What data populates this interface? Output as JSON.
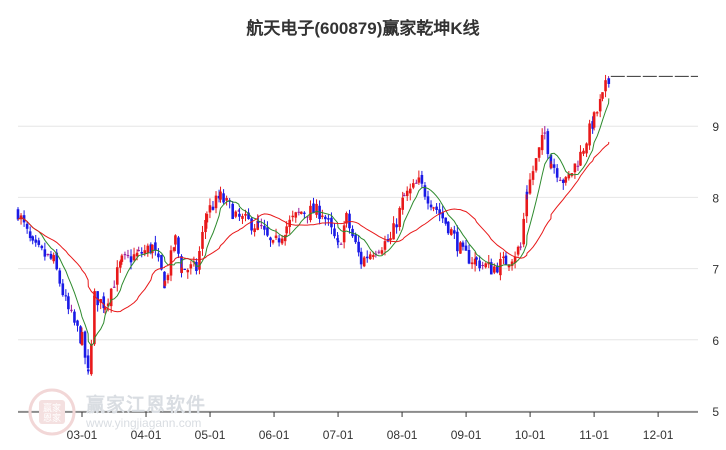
{
  "title": "航天电子(600879)赢家乾坤K线",
  "watermark": {
    "brand": "赢家江恩软件",
    "url": "www.yingjiagann.com",
    "seal_text": "赢家 恩家"
  },
  "colors": {
    "up": "#e8191a",
    "down": "#1a1ae6",
    "doji": "#9b1a9b",
    "ma_short": "#2e8b2e",
    "ma_long": "#e8191a",
    "grid": "#e6e6e6",
    "axis": "#333333"
  },
  "chart_data": {
    "type": "candlestick",
    "title": "航天电子(600879)赢家乾坤K线",
    "x_ticks": [
      "03-01",
      "04-01",
      "05-01",
      "06-01",
      "07-01",
      "08-01",
      "09-01",
      "10-01",
      "11-01",
      "12-01"
    ],
    "y_ticks": [
      "5",
      "6",
      "7",
      "8",
      "9"
    ],
    "ylim": [
      5,
      10
    ],
    "grid": true,
    "last_close_line": 9.7,
    "series": [
      {
        "kind": "candles",
        "keypoints": [
          {
            "date": "02-01",
            "price": 7.8
          },
          {
            "date": "02-08",
            "price": 7.3
          },
          {
            "date": "02-18",
            "price": 7.1
          },
          {
            "date": "02-25",
            "price": 6.4
          },
          {
            "date": "03-01",
            "price": 6.0
          },
          {
            "date": "03-04",
            "price": 5.5
          },
          {
            "date": "03-07",
            "price": 6.6
          },
          {
            "date": "03-12",
            "price": 6.5
          },
          {
            "date": "03-20",
            "price": 7.1
          },
          {
            "date": "03-28",
            "price": 7.2
          },
          {
            "date": "04-04",
            "price": 7.3
          },
          {
            "date": "04-10",
            "price": 6.8
          },
          {
            "date": "04-15",
            "price": 7.4
          },
          {
            "date": "04-18",
            "price": 7.0
          },
          {
            "date": "04-25",
            "price": 7.0
          },
          {
            "date": "04-30",
            "price": 7.8
          },
          {
            "date": "05-06",
            "price": 8.0
          },
          {
            "date": "05-15",
            "price": 7.7
          },
          {
            "date": "05-24",
            "price": 7.6
          },
          {
            "date": "05-31",
            "price": 7.3
          },
          {
            "date": "06-07",
            "price": 7.6
          },
          {
            "date": "06-14",
            "price": 7.8
          },
          {
            "date": "06-24",
            "price": 7.8
          },
          {
            "date": "07-01",
            "price": 7.3
          },
          {
            "date": "07-05",
            "price": 7.7
          },
          {
            "date": "07-12",
            "price": 7.1
          },
          {
            "date": "07-19",
            "price": 7.3
          },
          {
            "date": "07-26",
            "price": 7.4
          },
          {
            "date": "08-02",
            "price": 8.0
          },
          {
            "date": "08-09",
            "price": 8.2
          },
          {
            "date": "08-16",
            "price": 7.9
          },
          {
            "date": "08-23",
            "price": 7.6
          },
          {
            "date": "08-30",
            "price": 7.2
          },
          {
            "date": "09-06",
            "price": 7.1
          },
          {
            "date": "09-13",
            "price": 7.0
          },
          {
            "date": "09-20",
            "price": 7.1
          },
          {
            "date": "09-27",
            "price": 7.3
          },
          {
            "date": "09-30",
            "price": 8.1
          },
          {
            "date": "10-08",
            "price": 8.9
          },
          {
            "date": "10-11",
            "price": 8.5
          },
          {
            "date": "10-18",
            "price": 8.2
          },
          {
            "date": "10-25",
            "price": 8.6
          },
          {
            "date": "11-01",
            "price": 9.1
          },
          {
            "date": "11-05",
            "price": 9.4
          },
          {
            "date": "11-08",
            "price": 9.7
          }
        ]
      },
      {
        "kind": "ma_short",
        "color": "#2e8b2e"
      },
      {
        "kind": "ma_long",
        "color": "#e8191a"
      }
    ]
  }
}
